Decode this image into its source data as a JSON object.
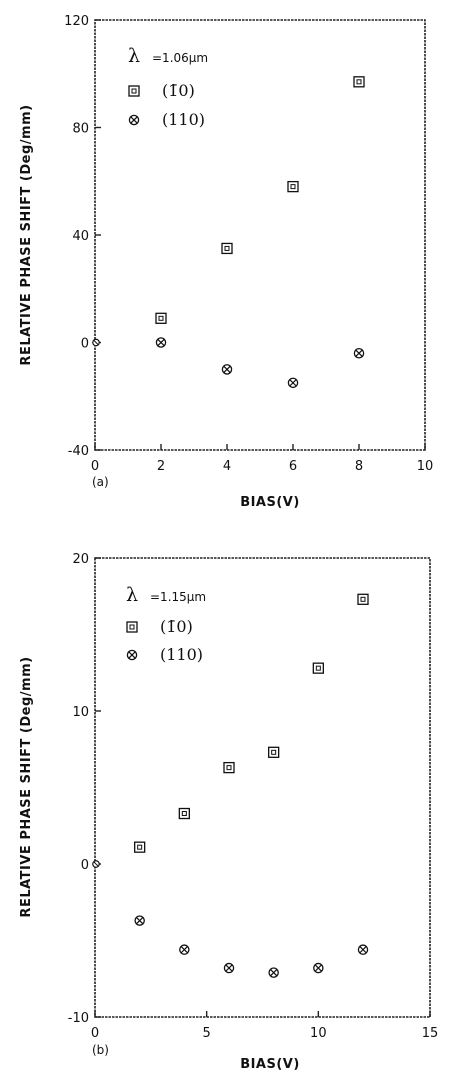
{
  "chart_data": [
    {
      "type": "scatter",
      "panel_label": "(a)",
      "xlabel": "BIAS(V)",
      "ylabel": "RELATIVE PHASE SHIFT (Deg/mm)",
      "xlim": [
        0,
        10
      ],
      "ylim": [
        -40,
        120
      ],
      "x_ticks": [
        "0",
        "2",
        "4",
        "6",
        "8",
        "10"
      ],
      "y_ticks": [
        "-40",
        "0",
        "40",
        "80",
        "120"
      ],
      "wavelength_symbol": "λ",
      "wavelength_text": "=1.06μm",
      "legend_position": "top-left",
      "series": [
        {
          "name": "(1̄0)",
          "marker": "square",
          "x": [
            0,
            2,
            4,
            6,
            8
          ],
          "y": [
            0,
            9,
            35,
            58,
            97
          ]
        },
        {
          "name": "(110)",
          "marker": "diamond",
          "x": [
            0,
            2,
            4,
            6,
            8
          ],
          "y": [
            0,
            0,
            -10,
            -15,
            -4
          ]
        }
      ]
    },
    {
      "type": "scatter",
      "panel_label": "(b)",
      "xlabel": "BIAS(V)",
      "ylabel": "RELATIVE PHASE SHIFT (Deg/mm)",
      "xlim": [
        0,
        15
      ],
      "ylim": [
        -10,
        20
      ],
      "x_ticks": [
        "0",
        "5",
        "10",
        "15"
      ],
      "y_ticks": [
        "-10",
        "0",
        "10",
        "20"
      ],
      "wavelength_symbol": "λ",
      "wavelength_text": "=1.15μm",
      "legend_position": "top-left",
      "series": [
        {
          "name": "(1̄0)",
          "marker": "square",
          "x": [
            0,
            2,
            4,
            6,
            8,
            10,
            12
          ],
          "y": [
            0,
            1.1,
            3.3,
            6.3,
            7.3,
            12.8,
            17.3
          ]
        },
        {
          "name": "(110)",
          "marker": "diamond",
          "x": [
            0,
            2,
            4,
            6,
            8,
            10,
            12
          ],
          "y": [
            0,
            -3.7,
            -5.6,
            -6.8,
            -7.1,
            -6.8,
            -5.6
          ]
        }
      ]
    }
  ]
}
